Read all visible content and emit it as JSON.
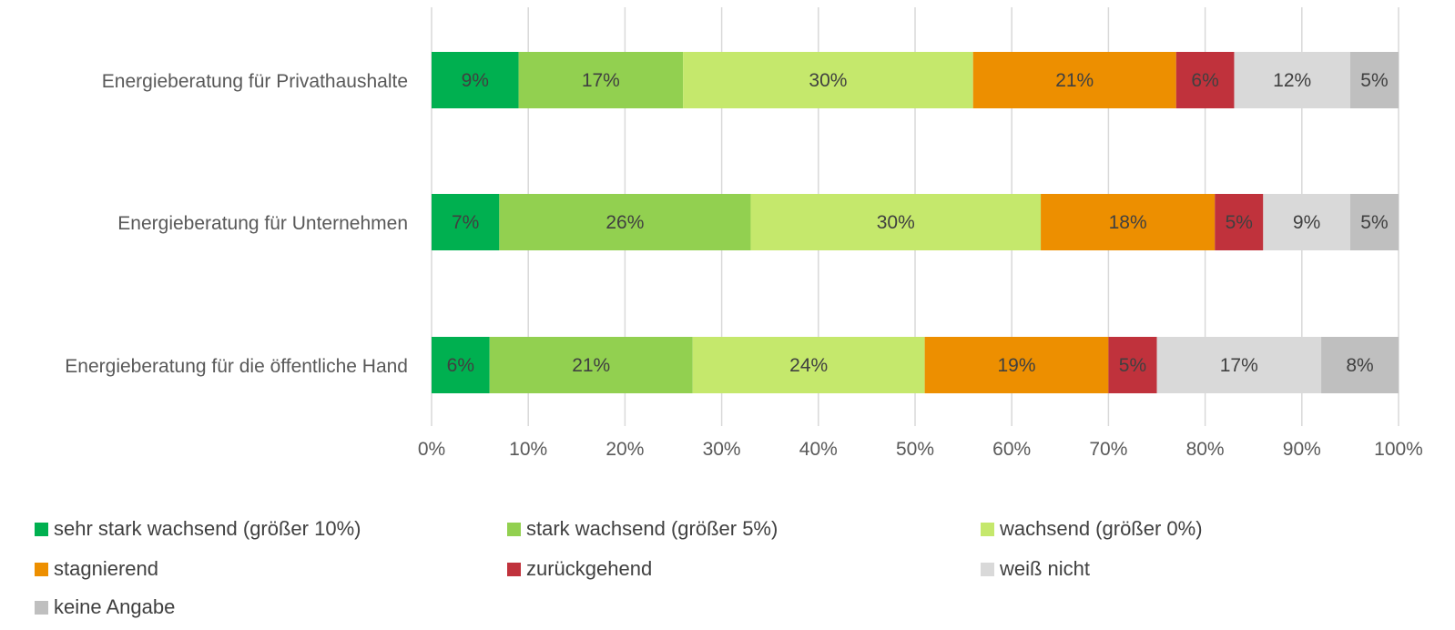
{
  "chart_data": {
    "type": "bar",
    "orientation": "horizontal",
    "stacked": true,
    "categories": [
      "Energieberatung für Privathaushalte",
      "Energieberatung für Unternehmen",
      "Energieberatung für die öffentliche Hand"
    ],
    "series": [
      {
        "name": "sehr stark wachsend (größer 10%)",
        "color": "#00b050",
        "values": [
          9,
          7,
          6
        ]
      },
      {
        "name": "stark wachsend (größer 5%)",
        "color": "#92d050",
        "values": [
          17,
          26,
          21
        ]
      },
      {
        "name": "wachsend (größer 0%)",
        "color": "#c5e86c",
        "values": [
          30,
          30,
          24
        ]
      },
      {
        "name": "stagnierend",
        "color": "#ed8f00",
        "values": [
          21,
          18,
          19
        ]
      },
      {
        "name": "zurückgehend",
        "color": "#c0323c",
        "values": [
          6,
          5,
          5
        ]
      },
      {
        "name": "weiß nicht",
        "color": "#d9d9d9",
        "values": [
          12,
          9,
          17
        ]
      },
      {
        "name": "keine Angabe",
        "color": "#bfbfbf",
        "values": [
          5,
          5,
          8
        ]
      }
    ],
    "xlim": [
      0,
      100
    ],
    "x_ticks": [
      "0%",
      "10%",
      "20%",
      "30%",
      "40%",
      "50%",
      "60%",
      "70%",
      "80%",
      "90%",
      "100%"
    ],
    "value_suffix": "%",
    "grid": true,
    "legend_position": "bottom"
  }
}
